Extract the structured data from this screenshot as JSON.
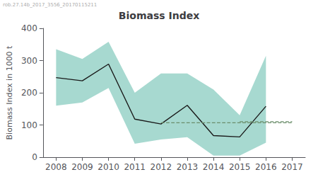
{
  "chart_data": {
    "type": "line",
    "title": "Biomass Index",
    "ylabel": "Biomass Index in 1000 t",
    "annotations": [
      "rob.27.14b_2017_3556_20170115211"
    ],
    "xlim": [
      2007.5,
      2017.5
    ],
    "xticks": [
      2008,
      2009,
      2010,
      2011,
      2012,
      2013,
      2014,
      2015,
      2016,
      2017
    ],
    "ylim": [
      0,
      400
    ],
    "yticks": [
      0,
      100,
      200,
      300,
      400
    ],
    "grid": false,
    "series": [
      {
        "type": "band",
        "x": [
          2008,
          2009,
          2010,
          2011,
          2012,
          2013,
          2014,
          2015,
          2016
        ],
        "lower": [
          160,
          170,
          215,
          42,
          55,
          62,
          5,
          5,
          45
        ],
        "upper": [
          335,
          305,
          358,
          200,
          260,
          260,
          210,
          130,
          315
        ],
        "color": "#6dbfb0"
      },
      {
        "type": "line",
        "x": [
          2008,
          2009,
          2010,
          2011,
          2012,
          2013,
          2014,
          2015,
          2016
        ],
        "values": [
          247,
          237,
          289,
          118,
          103,
          161,
          67,
          63,
          158
        ],
        "color": "#1a1a1a"
      },
      {
        "type": "line",
        "x": [
          2012,
          2017
        ],
        "values": [
          107,
          107
        ],
        "color": "#6b8e6b",
        "line_style": "dashed"
      },
      {
        "type": "line",
        "x": [
          2015,
          2017
        ],
        "values": [
          110,
          110
        ],
        "color": "#6b8e6b",
        "line_style": "dashed"
      }
    ]
  }
}
